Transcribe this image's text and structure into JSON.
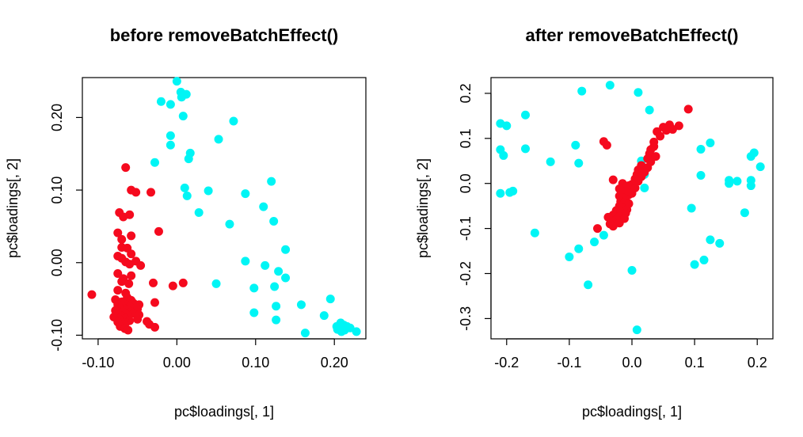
{
  "colors": {
    "batch_a": "#00F5F5",
    "batch_b": "#F50A1E",
    "axis": "#000000"
  },
  "chart_data": [
    {
      "type": "scatter",
      "title": "before removeBatchEffect()",
      "xlabel": "pc$loadings[, 1]",
      "ylabel": "pc$loadings[, 2]",
      "xlim": [
        -0.12,
        0.24
      ],
      "ylim": [
        -0.105,
        0.255
      ],
      "xticks": [
        -0.1,
        0.0,
        0.1,
        0.2
      ],
      "xtick_labels": [
        "-0.10",
        "0.00",
        "0.10",
        "0.20"
      ],
      "yticks": [
        -0.1,
        0.0,
        0.1,
        0.2
      ],
      "ytick_labels": [
        "-0.10",
        "0.00",
        "0.10",
        "0.20"
      ],
      "grid": false,
      "legend": "none",
      "series": [
        {
          "color": "#00F5F5",
          "points": [
            [
              0.0,
              0.25
            ],
            [
              0.005,
              0.235
            ],
            [
              0.012,
              0.232
            ],
            [
              0.006,
              0.228
            ],
            [
              -0.02,
              0.222
            ],
            [
              -0.008,
              0.218
            ],
            [
              0.008,
              0.202
            ],
            [
              0.072,
              0.195
            ],
            [
              -0.008,
              0.175
            ],
            [
              0.053,
              0.17
            ],
            [
              -0.008,
              0.162
            ],
            [
              0.017,
              0.151
            ],
            [
              0.015,
              0.143
            ],
            [
              -0.028,
              0.138
            ],
            [
              0.12,
              0.112
            ],
            [
              0.01,
              0.103
            ],
            [
              0.04,
              0.099
            ],
            [
              0.087,
              0.095
            ],
            [
              0.013,
              0.092
            ],
            [
              0.11,
              0.077
            ],
            [
              0.028,
              0.069
            ],
            [
              0.123,
              0.057
            ],
            [
              0.067,
              0.053
            ],
            [
              0.138,
              0.018
            ],
            [
              0.087,
              0.002
            ],
            [
              0.112,
              -0.004
            ],
            [
              0.129,
              -0.012
            ],
            [
              0.138,
              -0.021
            ],
            [
              0.05,
              -0.029
            ],
            [
              0.124,
              -0.033
            ],
            [
              0.098,
              -0.035
            ],
            [
              0.195,
              -0.05
            ],
            [
              0.158,
              -0.058
            ],
            [
              0.126,
              -0.06
            ],
            [
              0.098,
              -0.069
            ],
            [
              0.187,
              -0.073
            ],
            [
              0.126,
              -0.079
            ],
            [
              0.208,
              -0.083
            ],
            [
              0.212,
              -0.086
            ],
            [
              0.203,
              -0.088
            ],
            [
              0.216,
              -0.088
            ],
            [
              0.22,
              -0.09
            ],
            [
              0.204,
              -0.092
            ],
            [
              0.213,
              -0.093
            ],
            [
              0.228,
              -0.095
            ],
            [
              0.209,
              -0.095
            ],
            [
              0.163,
              -0.097
            ]
          ]
        },
        {
          "color": "#F50A1E",
          "points": [
            [
              -0.065,
              0.131
            ],
            [
              -0.058,
              0.1
            ],
            [
              -0.052,
              0.097
            ],
            [
              -0.033,
              0.097
            ],
            [
              -0.073,
              0.069
            ],
            [
              -0.06,
              0.066
            ],
            [
              -0.068,
              0.063
            ],
            [
              -0.023,
              0.043
            ],
            [
              -0.075,
              0.041
            ],
            [
              -0.058,
              0.037
            ],
            [
              -0.07,
              0.032
            ],
            [
              -0.07,
              0.021
            ],
            [
              -0.063,
              0.02
            ],
            [
              -0.058,
              0.012
            ],
            [
              -0.075,
              0.009
            ],
            [
              -0.07,
              0.006
            ],
            [
              -0.052,
              0.002
            ],
            [
              -0.065,
              0.001
            ],
            [
              -0.06,
              -0.002
            ],
            [
              -0.046,
              -0.004
            ],
            [
              -0.075,
              -0.015
            ],
            [
              -0.058,
              -0.018
            ],
            [
              -0.068,
              -0.022
            ],
            [
              -0.07,
              -0.026
            ],
            [
              -0.061,
              -0.029
            ],
            [
              -0.03,
              -0.028
            ],
            [
              0.008,
              -0.028
            ],
            [
              -0.005,
              -0.032
            ],
            [
              -0.075,
              -0.038
            ],
            [
              -0.065,
              -0.042
            ],
            [
              -0.108,
              -0.044
            ],
            [
              -0.063,
              -0.048
            ],
            [
              -0.078,
              -0.051
            ],
            [
              -0.058,
              -0.052
            ],
            [
              -0.07,
              -0.054
            ],
            [
              -0.055,
              -0.056
            ],
            [
              -0.028,
              -0.055
            ],
            [
              -0.075,
              -0.058
            ],
            [
              -0.065,
              -0.058
            ],
            [
              -0.048,
              -0.058
            ],
            [
              -0.07,
              -0.06
            ],
            [
              -0.06,
              -0.061
            ],
            [
              -0.072,
              -0.063
            ],
            [
              -0.066,
              -0.064
            ],
            [
              -0.063,
              -0.065
            ],
            [
              -0.05,
              -0.064
            ],
            [
              -0.078,
              -0.066
            ],
            [
              -0.068,
              -0.068
            ],
            [
              -0.058,
              -0.068
            ],
            [
              -0.075,
              -0.07
            ],
            [
              -0.065,
              -0.071
            ],
            [
              -0.055,
              -0.07
            ],
            [
              -0.048,
              -0.072
            ],
            [
              -0.07,
              -0.074
            ],
            [
              -0.062,
              -0.075
            ],
            [
              -0.08,
              -0.075
            ],
            [
              -0.066,
              -0.077
            ],
            [
              -0.05,
              -0.078
            ],
            [
              -0.072,
              -0.079
            ],
            [
              -0.06,
              -0.08
            ],
            [
              -0.038,
              -0.081
            ],
            [
              -0.075,
              -0.082
            ],
            [
              -0.065,
              -0.083
            ],
            [
              -0.068,
              -0.085
            ],
            [
              -0.035,
              -0.085
            ],
            [
              -0.072,
              -0.088
            ],
            [
              -0.028,
              -0.089
            ],
            [
              -0.066,
              -0.091
            ],
            [
              -0.062,
              -0.093
            ]
          ]
        }
      ]
    },
    {
      "type": "scatter",
      "title": "after removeBatchEffect()",
      "xlabel": "pc$loadings[, 1]",
      "ylabel": "pc$loadings[, 2]",
      "xlim": [
        -0.225,
        0.225
      ],
      "ylim": [
        -0.345,
        0.235
      ],
      "xticks": [
        -0.2,
        -0.1,
        0.0,
        0.1,
        0.2
      ],
      "xtick_labels": [
        "-0.2",
        "-0.1",
        "0.0",
        "0.1",
        "0.2"
      ],
      "yticks": [
        -0.3,
        -0.2,
        -0.1,
        0.0,
        0.1,
        0.2
      ],
      "ytick_labels": [
        "-0.3",
        "-0.2",
        "-0.1",
        "0.0",
        "0.1",
        "0.2"
      ],
      "grid": false,
      "legend": "none",
      "series": [
        {
          "color": "#00F5F5",
          "points": [
            [
              -0.035,
              0.218
            ],
            [
              -0.08,
              0.205
            ],
            [
              0.01,
              0.202
            ],
            [
              0.028,
              0.163
            ],
            [
              -0.17,
              0.152
            ],
            [
              -0.21,
              0.133
            ],
            [
              -0.2,
              0.128
            ],
            [
              -0.21,
              0.075
            ],
            [
              -0.205,
              0.062
            ],
            [
              -0.17,
              0.077
            ],
            [
              -0.13,
              0.048
            ],
            [
              -0.09,
              0.085
            ],
            [
              -0.085,
              0.045
            ],
            [
              0.11,
              0.076
            ],
            [
              0.125,
              0.09
            ],
            [
              0.195,
              0.068
            ],
            [
              0.19,
              0.06
            ],
            [
              0.205,
              0.037
            ],
            [
              0.11,
              0.018
            ],
            [
              0.155,
              0.007
            ],
            [
              0.168,
              0.005
            ],
            [
              0.155,
              0.0
            ],
            [
              0.19,
              0.007
            ],
            [
              0.19,
              -0.005
            ],
            [
              0.015,
              0.05
            ],
            [
              0.02,
              0.02
            ],
            [
              0.02,
              -0.01
            ],
            [
              -0.21,
              -0.022
            ],
            [
              -0.195,
              -0.02
            ],
            [
              -0.19,
              -0.017
            ],
            [
              -0.155,
              -0.11
            ],
            [
              0.095,
              -0.055
            ],
            [
              0.18,
              -0.065
            ],
            [
              -0.045,
              -0.115
            ],
            [
              -0.06,
              -0.13
            ],
            [
              0.125,
              -0.125
            ],
            [
              0.14,
              -0.133
            ],
            [
              -0.085,
              -0.145
            ],
            [
              -0.1,
              -0.163
            ],
            [
              0.115,
              -0.17
            ],
            [
              0.1,
              -0.18
            ],
            [
              0.0,
              -0.193
            ],
            [
              -0.07,
              -0.225
            ],
            [
              0.008,
              -0.325
            ]
          ]
        },
        {
          "color": "#F50A1E",
          "points": [
            [
              0.09,
              0.165
            ],
            [
              0.06,
              0.13
            ],
            [
              0.075,
              0.128
            ],
            [
              0.05,
              0.125
            ],
            [
              0.065,
              0.12
            ],
            [
              0.055,
              0.118
            ],
            [
              0.04,
              0.115
            ],
            [
              0.045,
              0.105
            ],
            [
              0.035,
              0.092
            ],
            [
              -0.045,
              0.093
            ],
            [
              -0.04,
              0.085
            ],
            [
              0.035,
              0.082
            ],
            [
              0.03,
              0.075
            ],
            [
              0.028,
              0.066
            ],
            [
              0.038,
              0.06
            ],
            [
              0.025,
              0.055
            ],
            [
              0.03,
              0.048
            ],
            [
              0.015,
              0.04
            ],
            [
              0.025,
              0.035
            ],
            [
              0.01,
              0.03
            ],
            [
              0.02,
              0.025
            ],
            [
              0.008,
              0.02
            ],
            [
              0.015,
              0.015
            ],
            [
              0.005,
              0.01
            ],
            [
              -0.03,
              0.008
            ],
            [
              0.01,
              0.005
            ],
            [
              -0.015,
              0.0
            ],
            [
              0.0,
              -0.002
            ],
            [
              -0.005,
              -0.005
            ],
            [
              -0.01,
              -0.008
            ],
            [
              0.005,
              -0.01
            ],
            [
              -0.02,
              -0.012
            ],
            [
              -0.015,
              -0.018
            ],
            [
              -0.01,
              -0.02
            ],
            [
              0.0,
              -0.022
            ],
            [
              -0.005,
              -0.025
            ],
            [
              -0.02,
              -0.028
            ],
            [
              -0.015,
              -0.032
            ],
            [
              -0.01,
              -0.035
            ],
            [
              -0.018,
              -0.04
            ],
            [
              -0.012,
              -0.042
            ],
            [
              -0.005,
              -0.045
            ],
            [
              -0.02,
              -0.05
            ],
            [
              -0.015,
              -0.055
            ],
            [
              -0.008,
              -0.058
            ],
            [
              -0.025,
              -0.06
            ],
            [
              -0.018,
              -0.063
            ],
            [
              -0.01,
              -0.066
            ],
            [
              -0.03,
              -0.07
            ],
            [
              -0.02,
              -0.073
            ],
            [
              -0.038,
              -0.075
            ],
            [
              -0.012,
              -0.078
            ],
            [
              -0.025,
              -0.08
            ],
            [
              -0.03,
              -0.085
            ],
            [
              -0.02,
              -0.088
            ],
            [
              -0.035,
              -0.09
            ],
            [
              -0.03,
              -0.095
            ],
            [
              -0.055,
              -0.1
            ]
          ]
        }
      ]
    }
  ]
}
